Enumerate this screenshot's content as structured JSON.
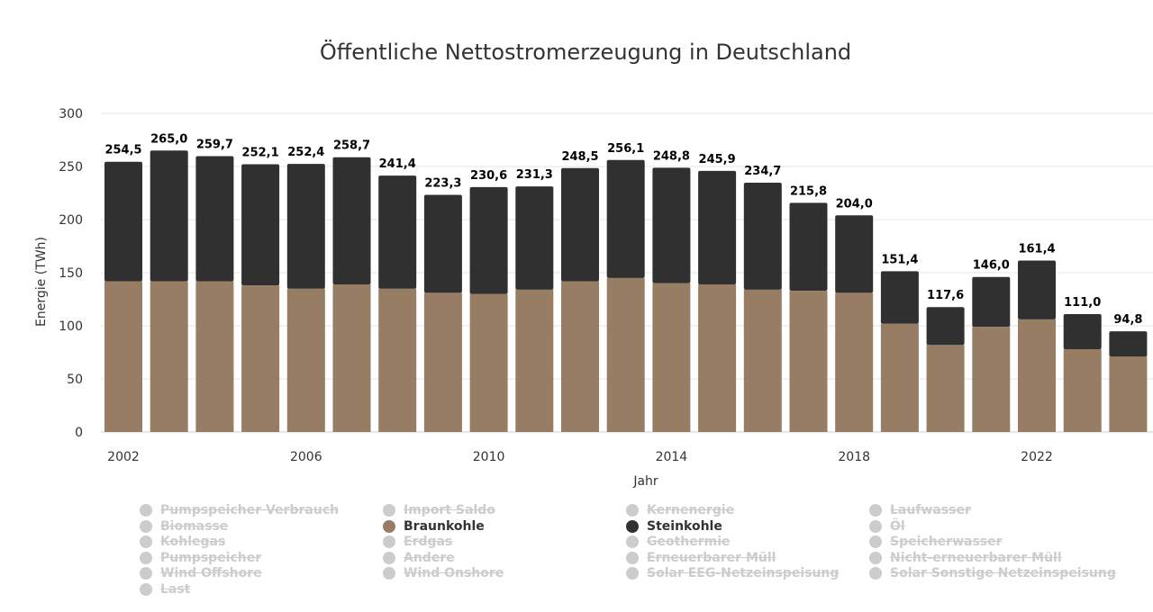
{
  "chart_data": {
    "type": "stacked-bar",
    "title": "Öffentliche Nettostromerzeugung in Deutschland",
    "xlabel": "Jahr",
    "ylabel": "Energie (TWh)",
    "ylim": [
      0,
      300
    ],
    "yticks": [
      0,
      50,
      100,
      150,
      200,
      250,
      300
    ],
    "xtick_labels": [
      "2002",
      "2006",
      "2010",
      "2014",
      "2018",
      "2022"
    ],
    "categories": [
      "2002",
      "2003",
      "2004",
      "2005",
      "2006",
      "2007",
      "2008",
      "2009",
      "2010",
      "2011",
      "2012",
      "2013",
      "2014",
      "2015",
      "2016",
      "2017",
      "2018",
      "2019",
      "2020",
      "2021",
      "2022",
      "2023",
      "2024"
    ],
    "series": [
      {
        "name": "Braunkohle",
        "color": "#967d64",
        "values": [
          142,
          142,
          142,
          138,
          135,
          139,
          135,
          131,
          130,
          134,
          142,
          145,
          140,
          139,
          134,
          133,
          131,
          102,
          82,
          99,
          106,
          78,
          71
        ]
      },
      {
        "name": "Steinkohle",
        "color": "#303030",
        "values": [
          112.5,
          123,
          117.7,
          114.1,
          117.4,
          119.7,
          106.4,
          92.3,
          100.6,
          97.3,
          106.5,
          111.1,
          108.8,
          106.9,
          100.7,
          82.8,
          73,
          49.4,
          35.6,
          47,
          55.4,
          33,
          23.8
        ]
      }
    ],
    "totals": [
      254.5,
      265.0,
      259.7,
      252.1,
      252.4,
      258.7,
      241.4,
      223.3,
      230.6,
      231.3,
      248.5,
      256.1,
      248.8,
      245.9,
      234.7,
      215.8,
      204.0,
      151.4,
      117.6,
      146.0,
      161.4,
      111.0,
      94.8
    ],
    "data_labels": [
      "254,5",
      "265,0",
      "259,7",
      "252,1",
      "252,4",
      "258,7",
      "241,4",
      "223,3",
      "230,6",
      "231,3",
      "248,5",
      "256,1",
      "248,8",
      "245,9",
      "234,7",
      "215,8",
      "204,0",
      "151,4",
      "117,6",
      "146,0",
      "161,4",
      "111,0",
      "94,8"
    ],
    "grid": true,
    "legend_position": "bottom"
  },
  "legend": {
    "columns": [
      [
        {
          "label": "Pumpspeicher Verbrauch",
          "active": false
        },
        {
          "label": "Biomasse",
          "active": false
        },
        {
          "label": "Kohlegas",
          "active": false
        },
        {
          "label": "Pumpspeicher",
          "active": false
        },
        {
          "label": "Wind Offshore",
          "active": false
        },
        {
          "label": "Last",
          "active": false
        }
      ],
      [
        {
          "label": "Import Saldo",
          "active": false
        },
        {
          "label": "Braunkohle",
          "active": true,
          "color": "#967d64"
        },
        {
          "label": "Erdgas",
          "active": false
        },
        {
          "label": "Andere",
          "active": false
        },
        {
          "label": "Wind Onshore",
          "active": false
        }
      ],
      [
        {
          "label": "Kernenergie",
          "active": false
        },
        {
          "label": "Steinkohle",
          "active": true,
          "color": "#303030"
        },
        {
          "label": "Geothermie",
          "active": false
        },
        {
          "label": "Erneuerbarer Müll",
          "active": false
        },
        {
          "label": "Solar EEG-Netzeinspeisung",
          "active": false
        }
      ],
      [
        {
          "label": "Laufwasser",
          "active": false
        },
        {
          "label": "Öl",
          "active": false
        },
        {
          "label": "Speicherwasser",
          "active": false
        },
        {
          "label": "Nicht-erneuerbarer Müll",
          "active": false
        },
        {
          "label": "Solar Sonstige Netzeinspeisung",
          "active": false
        }
      ]
    ]
  }
}
